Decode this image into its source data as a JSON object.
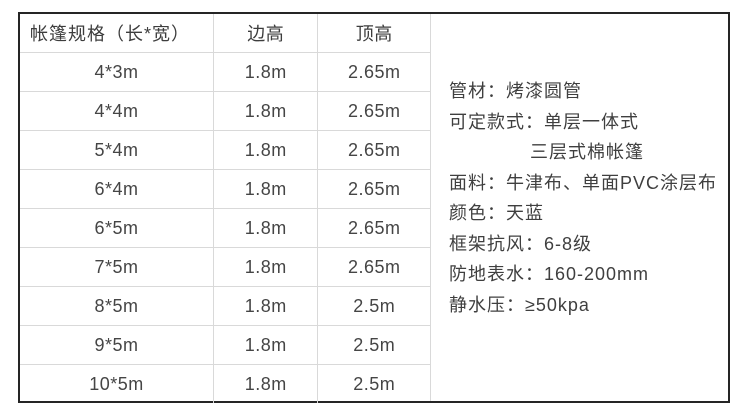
{
  "table": {
    "headers": [
      "帐篷规格（长*宽）",
      "边高",
      "顶高"
    ],
    "rows": [
      [
        "4*3m",
        "1.8m",
        "2.65m"
      ],
      [
        "4*4m",
        "1.8m",
        "2.65m"
      ],
      [
        "5*4m",
        "1.8m",
        "2.65m"
      ],
      [
        "6*4m",
        "1.8m",
        "2.65m"
      ],
      [
        "6*5m",
        "1.8m",
        "2.65m"
      ],
      [
        "7*5m",
        "1.8m",
        "2.65m"
      ],
      [
        "8*5m",
        "1.8m",
        "2.5m"
      ],
      [
        "9*5m",
        "1.8m",
        "2.5m"
      ],
      [
        "10*5m",
        "1.8m",
        "2.5m"
      ]
    ]
  },
  "details": {
    "lines": [
      {
        "text": "管材：烤漆圆管",
        "indent": false
      },
      {
        "text": "可定款式：单层一体式",
        "indent": false
      },
      {
        "text": "三层式棉帐篷",
        "indent": true
      },
      {
        "text": "面料：牛津布、单面PVC涂层布",
        "indent": false
      },
      {
        "text": "颜色：天蓝",
        "indent": false
      },
      {
        "text": "框架抗风：6-8级",
        "indent": false
      },
      {
        "text": "防地表水：160-200mm",
        "indent": false
      },
      {
        "text": "静水压：≥50kpa",
        "indent": false
      }
    ]
  },
  "colors": {
    "outer_border": "#252525",
    "grid_line": "#d9d9d9",
    "text": "#3f3f3f",
    "background": "#ffffff"
  }
}
